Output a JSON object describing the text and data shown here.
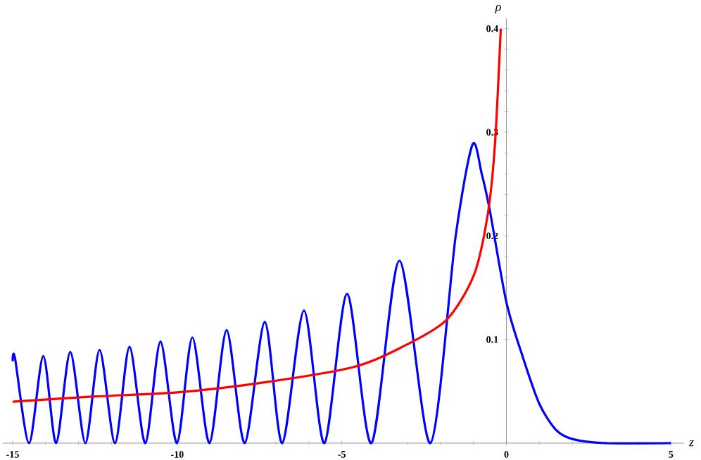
{
  "chart_data": {
    "type": "line",
    "xlabel": "z",
    "ylabel": "ρ",
    "xlim": [
      -15.3,
      5.4
    ],
    "ylim": [
      0,
      0.41
    ],
    "xticks": [
      -15,
      -10,
      -5,
      0,
      5
    ],
    "yticks": [
      0.1,
      0.2,
      0.3,
      0.4
    ],
    "series": [
      {
        "color": "#0000ff",
        "x": [
          -15,
          -14.93,
          -14.5,
          -14.07,
          -13.68,
          -13.25,
          -12.79,
          -12.36,
          -11.89,
          -11.45,
          -10.97,
          -10.51,
          -10.01,
          -9.54,
          -9.02,
          -8.5,
          -7.95,
          -7.34,
          -6.81,
          -6.15,
          -5.53,
          -4.84,
          -4.1,
          -3.25,
          -2.31,
          -1.54,
          -1.03,
          -0.75,
          -0.5,
          0,
          0.5,
          1,
          1.5,
          2,
          3,
          5
        ],
        "values": [
          0.079,
          0.082,
          0,
          0.084,
          0,
          0.088,
          0,
          0.09,
          0,
          0.093,
          0,
          0.098,
          0,
          0.102,
          0,
          0.109,
          0,
          0.117,
          0,
          0.128,
          0,
          0.144,
          0,
          0.176,
          0,
          0.2,
          0.288,
          0.26,
          0.224,
          0.136,
          0.083,
          0.038,
          0.013,
          0.004,
          0,
          0
        ]
      },
      {
        "color": "#ff0000",
        "x": [
          -15,
          -12.5,
          -10,
          -7.5,
          -4.7,
          -3.28,
          -1.85,
          -0.99,
          -0.57,
          -0.35,
          -0.17
        ],
        "values": [
          0.04,
          0.045,
          0.049,
          0.058,
          0.073,
          0.091,
          0.118,
          0.162,
          0.22,
          0.287,
          0.4
        ]
      }
    ]
  }
}
